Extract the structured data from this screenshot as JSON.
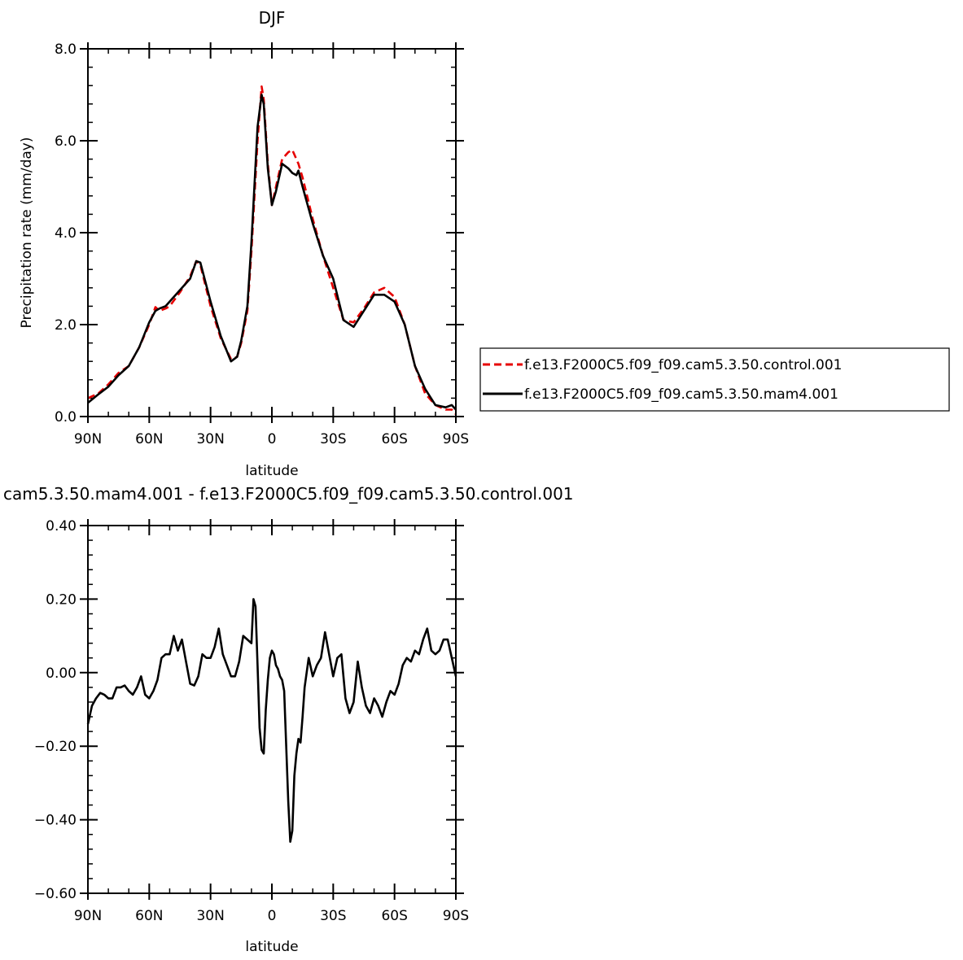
{
  "chart_data": [
    {
      "type": "line",
      "title": "DJF",
      "xlabel": "latitude",
      "ylabel": "Precipitation rate (mm/day)",
      "xlim": [
        90,
        -90
      ],
      "ylim": [
        0,
        8
      ],
      "x_ticks": [
        {
          "value": 90,
          "label": "90N"
        },
        {
          "value": 60,
          "label": "60N"
        },
        {
          "value": 30,
          "label": "30N"
        },
        {
          "value": 0,
          "label": "0"
        },
        {
          "value": -30,
          "label": "30S"
        },
        {
          "value": -60,
          "label": "60S"
        },
        {
          "value": -90,
          "label": "90S"
        }
      ],
      "y_ticks": [
        {
          "value": 0,
          "label": "0.0"
        },
        {
          "value": 2,
          "label": "2.0"
        },
        {
          "value": 4,
          "label": "4.0"
        },
        {
          "value": 6,
          "label": "6.0"
        },
        {
          "value": 8,
          "label": "8.0"
        }
      ],
      "legend": "right",
      "series": [
        {
          "name": "f.e13.F2000C5.f09_f09.cam5.3.50.control.001",
          "color": "#e60000",
          "dash": "dashed",
          "x": [
            90,
            85,
            80,
            75,
            70,
            65,
            60,
            57,
            55,
            52,
            50,
            45,
            40,
            37,
            35,
            30,
            25,
            20,
            17,
            15,
            12,
            10,
            7,
            5,
            4,
            2,
            0,
            -2,
            -5,
            -8,
            -10,
            -12,
            -13,
            -15,
            -20,
            -25,
            -30,
            -35,
            -40,
            -45,
            -50,
            -55,
            -60,
            -65,
            -70,
            -75,
            -80,
            -85,
            -88,
            -90
          ],
          "y": [
            0.4,
            0.5,
            0.7,
            0.95,
            1.1,
            1.5,
            2.0,
            2.38,
            2.3,
            2.35,
            2.4,
            2.7,
            3.05,
            3.38,
            3.3,
            2.4,
            1.7,
            1.25,
            1.3,
            1.6,
            2.3,
            3.6,
            6.0,
            7.18,
            6.9,
            5.5,
            4.6,
            5.0,
            5.6,
            5.75,
            5.8,
            5.6,
            5.5,
            5.2,
            4.3,
            3.5,
            2.8,
            2.1,
            2.05,
            2.35,
            2.7,
            2.8,
            2.6,
            2.0,
            1.1,
            0.5,
            0.25,
            0.15,
            0.15,
            0.05
          ]
        },
        {
          "name": "f.e13.F2000C5.f09_f09.cam5.3.50.mam4.001",
          "color": "#000000",
          "dash": "solid",
          "x": [
            90,
            85,
            80,
            75,
            70,
            65,
            60,
            57,
            55,
            52,
            50,
            45,
            40,
            37,
            35,
            30,
            25,
            20,
            17,
            15,
            12,
            10,
            7,
            5,
            4,
            2,
            0,
            -2,
            -5,
            -8,
            -10,
            -12,
            -13,
            -15,
            -20,
            -25,
            -30,
            -35,
            -40,
            -45,
            -50,
            -55,
            -60,
            -65,
            -70,
            -75,
            -80,
            -85,
            -88,
            -90
          ],
          "y": [
            0.3,
            0.48,
            0.65,
            0.9,
            1.1,
            1.5,
            2.05,
            2.3,
            2.35,
            2.4,
            2.5,
            2.75,
            3.0,
            3.38,
            3.35,
            2.5,
            1.75,
            1.2,
            1.3,
            1.65,
            2.4,
            3.8,
            6.3,
            7.0,
            6.8,
            5.4,
            4.6,
            4.9,
            5.5,
            5.4,
            5.3,
            5.25,
            5.35,
            5.0,
            4.2,
            3.5,
            3.0,
            2.1,
            1.95,
            2.3,
            2.65,
            2.65,
            2.5,
            2.0,
            1.1,
            0.6,
            0.25,
            0.2,
            0.25,
            0.15
          ]
        }
      ]
    },
    {
      "type": "line",
      "title": "cam5.3.50.mam4.001 - f.e13.F2000C5.f09_f09.cam5.3.50.control.001",
      "xlabel": "latitude",
      "xlim": [
        90,
        -90
      ],
      "ylim": [
        -0.6,
        0.4
      ],
      "x_ticks": [
        {
          "value": 90,
          "label": "90N"
        },
        {
          "value": 60,
          "label": "60N"
        },
        {
          "value": 30,
          "label": "30N"
        },
        {
          "value": 0,
          "label": "0"
        },
        {
          "value": -30,
          "label": "30S"
        },
        {
          "value": -60,
          "label": "60S"
        },
        {
          "value": -90,
          "label": "90S"
        }
      ],
      "y_ticks": [
        {
          "value": 0.4,
          "label": "0.40"
        },
        {
          "value": 0.2,
          "label": "0.20"
        },
        {
          "value": 0,
          "label": "0.00"
        },
        {
          "value": -0.2,
          "label": "-0.20"
        },
        {
          "value": -0.4,
          "label": "-0.40"
        },
        {
          "value": -0.6,
          "label": "-0.60"
        }
      ],
      "series": [
        {
          "color": "#000000",
          "dash": "solid",
          "x": [
            90,
            88,
            86,
            84,
            82,
            80,
            78,
            76,
            74,
            72,
            70,
            68,
            66,
            64,
            62,
            60,
            58,
            56,
            54,
            52,
            50,
            48,
            46,
            44,
            42,
            40,
            38,
            36,
            34,
            32,
            30,
            28,
            26,
            24,
            22,
            20,
            18,
            16,
            14,
            12,
            10,
            9,
            8,
            7,
            6,
            5,
            4,
            3,
            2,
            1,
            0,
            -1,
            -2,
            -3,
            -4,
            -5,
            -6,
            -7,
            -8,
            -9,
            -10,
            -11,
            -12,
            -13,
            -14,
            -15,
            -16,
            -18,
            -20,
            -22,
            -24,
            -26,
            -28,
            -30,
            -32,
            -34,
            -36,
            -38,
            -40,
            -42,
            -44,
            -46,
            -48,
            -50,
            -52,
            -54,
            -56,
            -58,
            -60,
            -62,
            -64,
            -66,
            -68,
            -70,
            -72,
            -74,
            -76,
            -78,
            -80,
            -82,
            -84,
            -86,
            -88,
            -90
          ],
          "y": [
            -0.14,
            -0.09,
            -0.07,
            -0.055,
            -0.06,
            -0.07,
            -0.07,
            -0.04,
            -0.04,
            -0.035,
            -0.05,
            -0.06,
            -0.04,
            -0.01,
            -0.06,
            -0.07,
            -0.05,
            -0.02,
            0.04,
            0.05,
            0.05,
            0.1,
            0.06,
            0.09,
            0.03,
            -0.03,
            -0.035,
            -0.01,
            0.05,
            0.04,
            0.04,
            0.07,
            0.12,
            0.05,
            0.02,
            -0.01,
            -0.01,
            0.03,
            0.1,
            0.09,
            0.08,
            0.2,
            0.18,
            0.02,
            -0.15,
            -0.21,
            -0.22,
            -0.1,
            -0.02,
            0.04,
            0.06,
            0.05,
            0.02,
            0.01,
            -0.01,
            -0.02,
            -0.05,
            -0.2,
            -0.35,
            -0.46,
            -0.43,
            -0.28,
            -0.22,
            -0.18,
            -0.19,
            -0.12,
            -0.04,
            0.04,
            -0.01,
            0.02,
            0.04,
            0.11,
            0.05,
            -0.01,
            0.04,
            0.05,
            -0.07,
            -0.11,
            -0.08,
            0.03,
            -0.04,
            -0.09,
            -0.11,
            -0.07,
            -0.09,
            -0.12,
            -0.08,
            -0.05,
            -0.06,
            -0.03,
            0.02,
            0.04,
            0.03,
            0.06,
            0.05,
            0.09,
            0.12,
            0.06,
            0.05,
            0.06,
            0.09,
            0.09,
            0.04,
            -0.01
          ]
        }
      ]
    }
  ]
}
